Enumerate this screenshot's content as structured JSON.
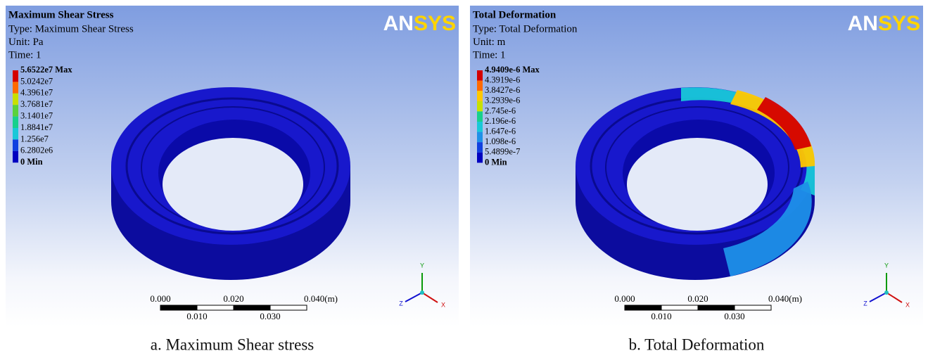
{
  "panels": [
    {
      "title": "Maximum Shear Stress",
      "type_line": "Type: Maximum Shear Stress",
      "unit_line": "Unit: Pa",
      "time_line": "Time: 1",
      "legend": [
        "5.6522e7 Max",
        "5.0242e7",
        "4.3961e7",
        "3.7681e7",
        "3.1401e7",
        "1.8841e7",
        "1.256e7",
        "6.2802e6",
        "0 Min"
      ],
      "logo": [
        "AN",
        "SYS"
      ],
      "scale_top": [
        "0.000",
        "0.020",
        "0.040(m)"
      ],
      "scale_bottom": [
        "0.010",
        "0.030"
      ],
      "axes": [
        "Y",
        "X",
        "Z"
      ],
      "caption": "a. Maximum Shear stress"
    },
    {
      "title": "Total Deformation",
      "type_line": "Type: Total Deformation",
      "unit_line": "Unit: m",
      "time_line": "Time: 1",
      "legend": [
        "4.9409e-6 Max",
        "4.3919e-6",
        "3.8427e-6",
        "3.2939e-6",
        "2.745e-6",
        "2.196e-6",
        "1.647e-6",
        "1.098e-6",
        "5.4899e-7",
        "0 Min"
      ],
      "logo": [
        "AN",
        "SYS"
      ],
      "scale_top": [
        "0.000",
        "0.020",
        "0.040(m)"
      ],
      "scale_bottom": [
        "0.010",
        "0.030"
      ],
      "axes": [
        "Y",
        "X",
        "Z"
      ],
      "caption": "b. Total Deformation"
    }
  ]
}
